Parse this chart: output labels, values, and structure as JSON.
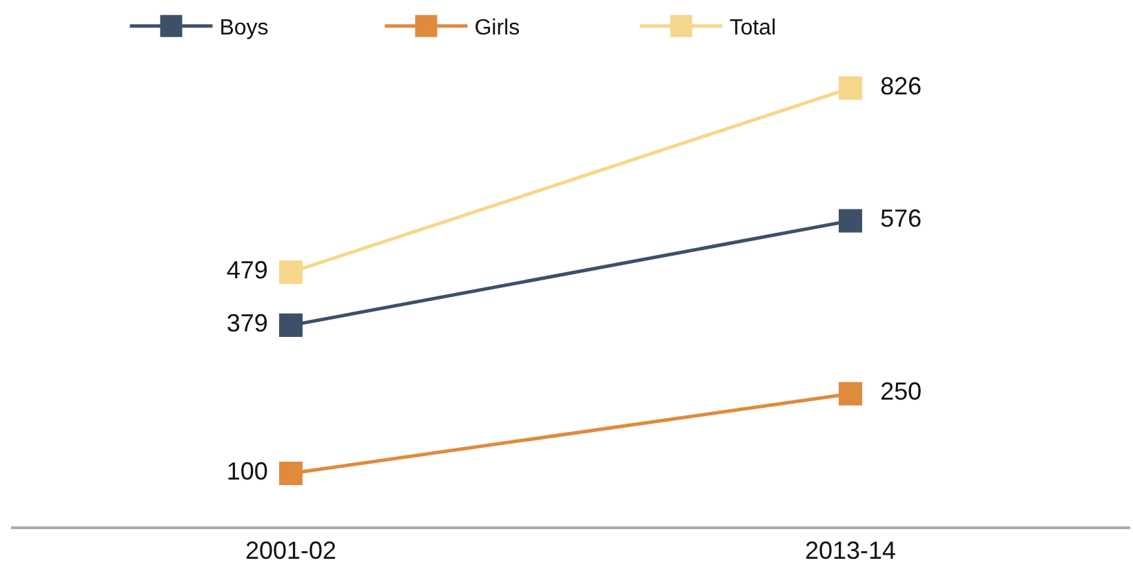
{
  "chart_data": {
    "type": "line",
    "categories": [
      "2001-02",
      "2013-14"
    ],
    "series": [
      {
        "name": "Boys",
        "color": "#3d5068",
        "values": [
          379,
          576
        ]
      },
      {
        "name": "Girls",
        "color": "#e08a3c",
        "values": [
          100,
          250
        ]
      },
      {
        "name": "Total",
        "color": "#f6d78c",
        "values": [
          479,
          826
        ]
      }
    ],
    "data_labels": true,
    "legend": "top",
    "marker": "square",
    "line_style": "solid",
    "tick_labels": "x"
  }
}
